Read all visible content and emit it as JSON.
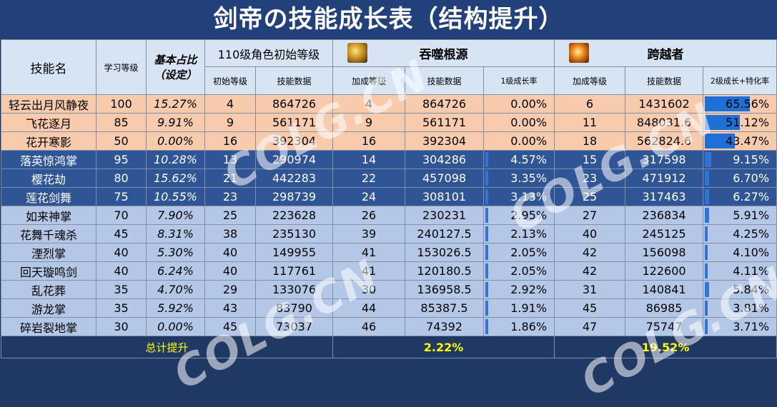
{
  "title": "剑帝の技能成长表（结构提升）",
  "headers": {
    "skill_name": "技能名",
    "learn_level": "学习等级",
    "base_ratio": "基本占比",
    "base_ratio_note": "（设定）",
    "initial_group": "110级角色初始等级",
    "init_level": "初始等级",
    "skill_data": "技能数据",
    "group1": {
      "name": "吞噬根源",
      "add_level": "加成等级",
      "skill_data": "技能数据",
      "rate": "1级成长率"
    },
    "group2": {
      "name": "跨越者",
      "add_level": "加成等级",
      "skill_data": "技能数据",
      "rate": "2级成长+特化率"
    }
  },
  "rows": [
    {
      "name": "轻云出月风静夜",
      "learn": "100",
      "ratio": "15.27%",
      "init": "4",
      "data": "864726",
      "g1_lv": "4",
      "g1_data": "864726",
      "g1_rate": "0.00%",
      "g1_pct": 0.0,
      "g2_lv": "6",
      "g2_data": "1431602",
      "g2_rate": "65.56%",
      "g2_pct": 65.56,
      "style": "orange"
    },
    {
      "name": "飞花逐月",
      "learn": "85",
      "ratio": "9.91%",
      "init": "9",
      "data": "561171",
      "g1_lv": "9",
      "g1_data": "561171",
      "g1_rate": "0.00%",
      "g1_pct": 0.0,
      "g2_lv": "11",
      "g2_data": "848031.6",
      "g2_rate": "51.12%",
      "g2_pct": 51.12,
      "style": "orange"
    },
    {
      "name": "花开寒影",
      "learn": "50",
      "ratio": "0.00%",
      "init": "16",
      "data": "392304",
      "g1_lv": "16",
      "g1_data": "392304",
      "g1_rate": "0.00%",
      "g1_pct": 0.0,
      "g2_lv": "18",
      "g2_data": "562824.6",
      "g2_rate": "43.47%",
      "g2_pct": 43.47,
      "style": "orange"
    },
    {
      "name": "落英惊鸿掌",
      "learn": "95",
      "ratio": "10.28%",
      "init": "13",
      "data": "290974",
      "g1_lv": "14",
      "g1_data": "304286",
      "g1_rate": "4.57%",
      "g1_pct": 4.57,
      "g2_lv": "15",
      "g2_data": "317598",
      "g2_rate": "9.15%",
      "g2_pct": 9.15,
      "style": "dark"
    },
    {
      "name": "樱花劫",
      "learn": "80",
      "ratio": "15.62%",
      "init": "21",
      "data": "442283",
      "g1_lv": "22",
      "g1_data": "457098",
      "g1_rate": "3.35%",
      "g1_pct": 3.35,
      "g2_lv": "23",
      "g2_data": "471912",
      "g2_rate": "6.70%",
      "g2_pct": 6.7,
      "style": "dark"
    },
    {
      "name": "莲花剑舞",
      "learn": "75",
      "ratio": "10.55%",
      "init": "23",
      "data": "298739",
      "g1_lv": "24",
      "g1_data": "308101",
      "g1_rate": "3.13%",
      "g1_pct": 3.13,
      "g2_lv": "25",
      "g2_data": "317463",
      "g2_rate": "6.27%",
      "g2_pct": 6.27,
      "style": "dark"
    },
    {
      "name": "如来神掌",
      "learn": "70",
      "ratio": "7.90%",
      "init": "25",
      "data": "223628",
      "g1_lv": "26",
      "g1_data": "230231",
      "g1_rate": "2.95%",
      "g1_pct": 2.95,
      "g2_lv": "27",
      "g2_data": "236834",
      "g2_rate": "5.91%",
      "g2_pct": 5.91,
      "style": "light"
    },
    {
      "name": "花舞千魂杀",
      "learn": "45",
      "ratio": "8.31%",
      "init": "38",
      "data": "235130",
      "g1_lv": "39",
      "g1_data": "240127.5",
      "g1_rate": "2.13%",
      "g1_pct": 2.13,
      "g2_lv": "40",
      "g2_data": "245125",
      "g2_rate": "4.25%",
      "g2_pct": 4.25,
      "style": "light"
    },
    {
      "name": "湮烈掌",
      "learn": "40",
      "ratio": "5.30%",
      "init": "40",
      "data": "149955",
      "g1_lv": "41",
      "g1_data": "153026.5",
      "g1_rate": "2.05%",
      "g1_pct": 2.05,
      "g2_lv": "42",
      "g2_data": "156098",
      "g2_rate": "4.10%",
      "g2_pct": 4.1,
      "style": "light"
    },
    {
      "name": "回天璇鸣剑",
      "learn": "40",
      "ratio": "6.24%",
      "init": "40",
      "data": "117761",
      "g1_lv": "41",
      "g1_data": "120180.5",
      "g1_rate": "2.05%",
      "g1_pct": 2.05,
      "g2_lv": "42",
      "g2_data": "122600",
      "g2_rate": "4.11%",
      "g2_pct": 4.11,
      "style": "light"
    },
    {
      "name": "乱花葬",
      "learn": "35",
      "ratio": "4.70%",
      "init": "29",
      "data": "133076",
      "g1_lv": "30",
      "g1_data": "136958.5",
      "g1_rate": "2.92%",
      "g1_pct": 2.92,
      "g2_lv": "31",
      "g2_data": "140841",
      "g2_rate": "5.84%",
      "g2_pct": 5.84,
      "style": "light"
    },
    {
      "name": "游龙掌",
      "learn": "35",
      "ratio": "5.92%",
      "init": "43",
      "data": "83790",
      "g1_lv": "44",
      "g1_data": "85387.5",
      "g1_rate": "1.91%",
      "g1_pct": 1.91,
      "g2_lv": "45",
      "g2_data": "86985",
      "g2_rate": "3.81%",
      "g2_pct": 3.81,
      "style": "light"
    },
    {
      "name": "碎岩裂地掌",
      "learn": "30",
      "ratio": "0.00%",
      "init": "45",
      "data": "73037",
      "g1_lv": "46",
      "g1_data": "74392",
      "g1_rate": "1.86%",
      "g1_pct": 1.86,
      "g2_lv": "47",
      "g2_data": "75747",
      "g2_rate": "3.71%",
      "g2_pct": 3.71,
      "style": "light"
    }
  ],
  "footer": {
    "label": "总计提升",
    "g1_total": "2.22%",
    "g2_total": "19.52%"
  },
  "watermark": "COLG.CN",
  "colors": {
    "orange_row": "#f8cbad",
    "dark_row": "#2f5597",
    "light_row": "#b4c7e7",
    "header": "#d6e4f4",
    "title_bg": "#22407a",
    "footer_text": "#ffff00",
    "bar": "#2e75d6"
  }
}
